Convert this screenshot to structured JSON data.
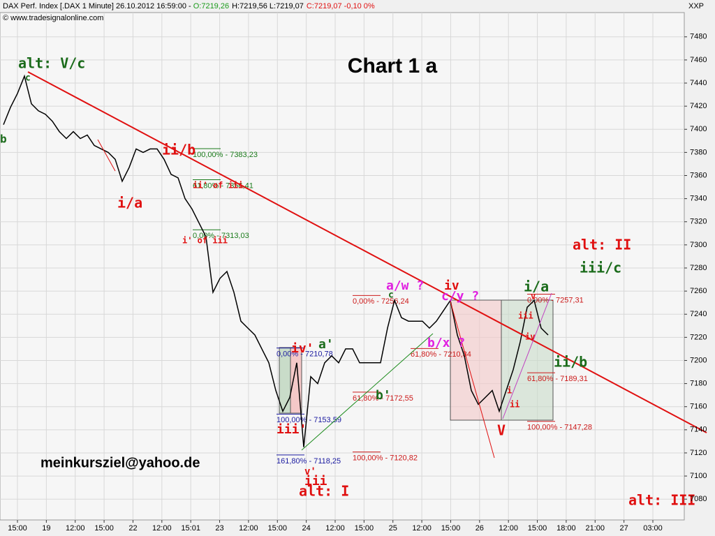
{
  "chart_data": {
    "type": "line",
    "header": {
      "instrument": "DAX Perf. Index [.DAX  1 Minute] 26.10.2012 16:59:00 - ",
      "open": "O:7219,26",
      "high_low": "H:7219,56 L:7219,07",
      "close": "C:7219,07 -0,10 0%"
    },
    "source": "© www.tradesignalonline.com",
    "corner_label": "XXP",
    "title": "Chart 1 a",
    "footer": "meinkursziel@yahoo.de",
    "color": "#000000",
    "values": [
      7404,
      7419,
      7431,
      7446,
      7422,
      7416,
      7413,
      7407,
      7398,
      7392,
      7398,
      7392,
      7395,
      7386,
      7383,
      7380,
      7374,
      7355,
      7367,
      7383,
      7380,
      7383,
      7383,
      7374,
      7361,
      7358,
      7340,
      7331,
      7319,
      7307,
      7259,
      7271,
      7277,
      7259,
      7234,
      7228,
      7222,
      7210,
      7198,
      7174,
      7156,
      7168,
      7198,
      7125,
      7186,
      7180,
      7198,
      7204,
      7198,
      7210,
      7210,
      7198,
      7198,
      7198,
      7198,
      7228,
      7252,
      7237,
      7234,
      7234,
      7234,
      7228,
      7234,
      7243,
      7252,
      7222,
      7204,
      7174,
      7162,
      7168,
      7174,
      7156,
      7174,
      7192,
      7216,
      7246,
      7252,
      7228,
      7222
    ],
    "x_tick_labels": [
      "15:00",
      "19",
      "12:00",
      "15:00",
      "22",
      "12:00",
      "15:01",
      "23",
      "12:00",
      "15:00",
      "24",
      "12:00",
      "15:00",
      "25",
      "12:00",
      "15:00",
      "26",
      "12:00",
      "15:00",
      "18:00",
      "21:00",
      "27",
      "03:00"
    ],
    "ylim": [
      7062,
      7501
    ],
    "yticks": [
      7080,
      7100,
      7120,
      7140,
      7160,
      7180,
      7200,
      7220,
      7240,
      7260,
      7280,
      7300,
      7320,
      7340,
      7360,
      7380,
      7400,
      7420,
      7440,
      7460,
      7480
    ],
    "grid": true,
    "levels": [
      {
        "label": "100,00% - 7383,23",
        "value": 7383.23,
        "color": "#1a7a1a"
      },
      {
        "label": "61,80% - 7356,41",
        "value": 7356.41,
        "color": "#1a7a1a"
      },
      {
        "label": "0,00% - 7313,03",
        "value": 7313.03,
        "color": "#1a7a1a"
      },
      {
        "label": "0,00% - 7210,78",
        "value": 7210.78,
        "color": "#1a1aa0"
      },
      {
        "label": "100,00% - 7153,59",
        "value": 7153.59,
        "color": "#1a1aa0"
      },
      {
        "label": "161,80% - 7118,25",
        "value": 7118.25,
        "color": "#1a1aa0"
      },
      {
        "label": "0,00% - 7256,24",
        "value": 7256.24,
        "color": "#cc1a1a"
      },
      {
        "label": "61,80% - 7210,34",
        "value": 7210.34,
        "color": "#cc1a1a"
      },
      {
        "label": "61,80% - 7172,55",
        "value": 7172.55,
        "color": "#cc1a1a"
      },
      {
        "label": "100,00% - 7120,82",
        "value": 7120.82,
        "color": "#cc1a1a"
      },
      {
        "label": "0,00% - 7257,31",
        "value": 7257.31,
        "color": "#cc1a1a"
      },
      {
        "label": "61,80% - 7189,31",
        "value": 7189.31,
        "color": "#cc1a1a"
      },
      {
        "label": "100,00% - 7147,28",
        "value": 7147.28,
        "color": "#cc1a1a"
      }
    ],
    "annotations": [
      {
        "text": "alt: V/c",
        "color": "#1a6b1a"
      },
      {
        "text": "c",
        "color": "#1a6b1a"
      },
      {
        "text": "b",
        "color": "#1a6b1a"
      },
      {
        "text": "ii/b",
        "color": "#e01010"
      },
      {
        "text": "i/a",
        "color": "#e01010"
      },
      {
        "text": "i' of iii",
        "color": "#e01010"
      },
      {
        "text": "ii' of iii",
        "color": "#e01010"
      },
      {
        "text": "iv'",
        "color": "#e01010"
      },
      {
        "text": "a'",
        "color": "#1a6b1a"
      },
      {
        "text": "iii'",
        "color": "#e01010"
      },
      {
        "text": "v'",
        "color": "#e01010"
      },
      {
        "text": "iii",
        "color": "#e01010"
      },
      {
        "text": "alt: I",
        "color": "#e01010"
      },
      {
        "text": "b'",
        "color": "#1a6b1a"
      },
      {
        "text": "a/w ?",
        "color": "#e020e0"
      },
      {
        "text": "iv",
        "color": "#e01010"
      },
      {
        "text": "c/y ?",
        "color": "#e020e0"
      },
      {
        "text": "b/x ?",
        "color": "#e020e0"
      },
      {
        "text": "c",
        "color": "#1a6b1a"
      },
      {
        "text": "V",
        "color": "#e01010"
      },
      {
        "text": "i/a",
        "color": "#1a6b1a"
      },
      {
        "text": "iii",
        "color": "#e01010"
      },
      {
        "text": "iv",
        "color": "#e01010"
      },
      {
        "text": "v",
        "color": "#e01010"
      },
      {
        "text": "ii",
        "color": "#e01010"
      },
      {
        "text": "i",
        "color": "#e01010"
      },
      {
        "text": "ii/b",
        "color": "#1a6b1a"
      },
      {
        "text": "alt: II",
        "color": "#e01010"
      },
      {
        "text": "iii/c",
        "color": "#1a6b1a"
      },
      {
        "text": "alt: III",
        "color": "#e01010"
      }
    ]
  }
}
